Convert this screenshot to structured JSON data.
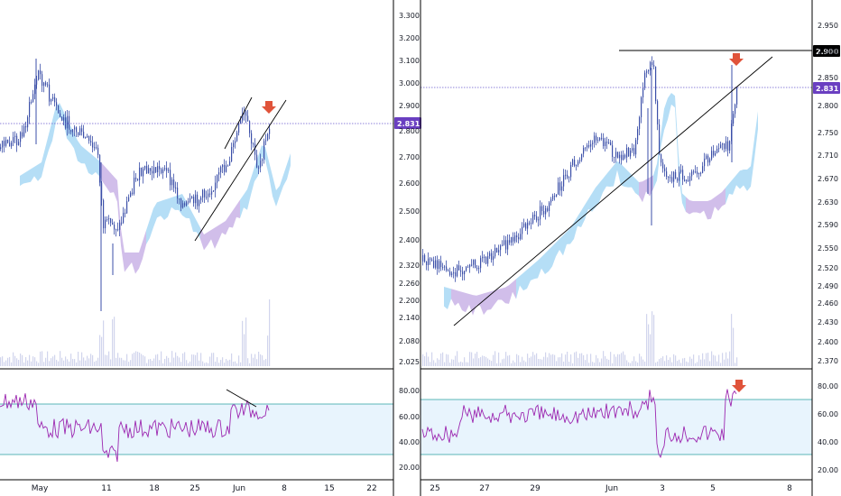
{
  "chart_data": [
    {
      "type": "candlestick",
      "panel": "left",
      "price_axis": {
        "ticks": [
          "3.300",
          "3.200",
          "3.100",
          "3.000",
          "2.900",
          "2.800",
          "2.700",
          "2.600",
          "2.500",
          "2.400",
          "2.320",
          "2.260",
          "2.200",
          "2.140",
          "2.080",
          "2.025"
        ]
      },
      "rsi_axis": {
        "ticks": [
          "80.00",
          "60.00",
          "40.00",
          "20.00"
        ]
      },
      "time_axis": {
        "ticks": [
          "May",
          "11",
          "18",
          "25",
          "Jun",
          "8",
          "15",
          "22"
        ]
      },
      "last_price_label": "2.831",
      "last_price": 2.831,
      "rsi_bands": [
        70,
        30
      ],
      "colors": {
        "candle": "#3b4fa8",
        "cloud_bull": "#a8d8f5",
        "cloud_bear": "#c9b3e6",
        "rsi": "#9c27b0",
        "volume": "#c5cbe8",
        "badge": "#6a3fc1",
        "arrow": "#e0533a"
      },
      "annotations": [
        "rising channel",
        "red down arrow at top",
        "RSI bearish divergence line"
      ]
    },
    {
      "type": "candlestick",
      "panel": "right",
      "price_axis": {
        "ticks": [
          "2.950",
          "2.900",
          "2.850",
          "2.800",
          "2.750",
          "2.710",
          "2.670",
          "2.630",
          "2.590",
          "2.550",
          "2.520",
          "2.490",
          "2.460",
          "2.430",
          "2.400",
          "2.370"
        ]
      },
      "rsi_axis": {
        "ticks": [
          "80.00",
          "60.00",
          "40.00",
          "20.00"
        ]
      },
      "time_axis": {
        "ticks": [
          "25",
          "27",
          "29",
          "Jun",
          "3",
          "5",
          "8"
        ]
      },
      "resistance_label": "2.900",
      "resistance": 2.9,
      "last_price_label": "2.831",
      "last_price": 2.831,
      "rsi_bands": [
        70,
        30
      ],
      "colors": {
        "candle": "#3b4fa8",
        "cloud_bull": "#a8d8f5",
        "cloud_bear": "#c9b3e6",
        "rsi": "#9c27b0",
        "volume": "#c5cbe8",
        "badge": "#6a3fc1",
        "resistance_badge": "#000000",
        "arrow": "#e0533a"
      },
      "annotations": [
        "rising trendline",
        "horizontal resistance",
        "red down arrow at top",
        "red down arrow on RSI"
      ]
    }
  ]
}
